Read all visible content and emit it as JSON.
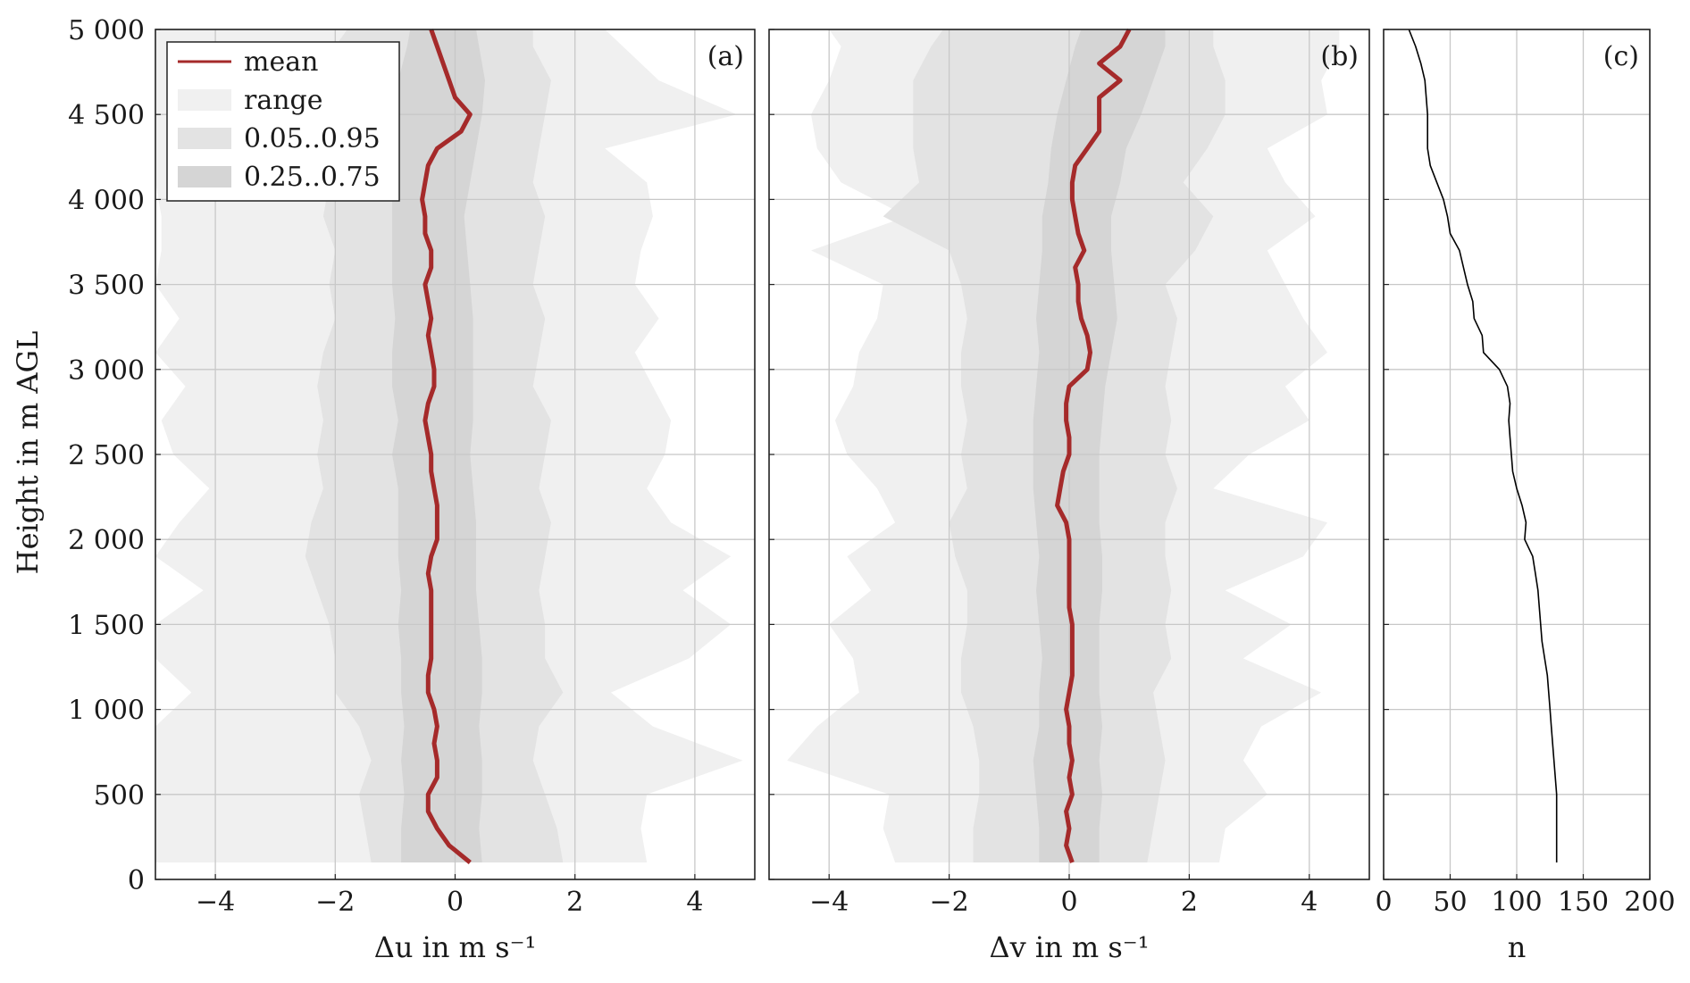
{
  "chart_data": [
    {
      "type": "area",
      "panel_label": "(a)",
      "xlabel": "Δu in m s⁻¹",
      "ylabel": "Height in m AGL",
      "xlim": [
        -5,
        5
      ],
      "ylim": [
        0,
        5000
      ],
      "xticks": [
        -4,
        -2,
        0,
        2,
        4
      ],
      "xtick_labels": [
        "−4",
        "−2",
        "0",
        "2",
        "4"
      ],
      "yticks": [
        0,
        500,
        1000,
        1500,
        2000,
        2500,
        3000,
        3500,
        4000,
        4500,
        5000
      ],
      "ytick_labels": [
        "0",
        "500",
        "1 000",
        "1 500",
        "2 000",
        "2 500",
        "3 000",
        "3 500",
        "4 000",
        "4 500",
        "5 000"
      ],
      "grid": true,
      "legend": {
        "placement": "top-left",
        "entries": [
          {
            "label": "mean",
            "style": "line",
            "color": "#a52a2a"
          },
          {
            "label": "range",
            "style": "band",
            "color": "#f0f0f0"
          },
          {
            "label": "0.05..0.95",
            "style": "band",
            "color": "#e3e3e3"
          },
          {
            "label": "0.25..0.75",
            "style": "band",
            "color": "#d5d5d5"
          }
        ]
      },
      "series": [
        {
          "name": "mean",
          "heights": [
            100,
            200,
            300,
            400,
            500,
            600,
            700,
            800,
            900,
            1000,
            1100,
            1200,
            1300,
            1400,
            1500,
            1600,
            1700,
            1800,
            1900,
            2000,
            2100,
            2200,
            2300,
            2400,
            2500,
            2600,
            2700,
            2800,
            2900,
            3000,
            3100,
            3200,
            3300,
            3400,
            3500,
            3600,
            3700,
            3800,
            3900,
            4000,
            4100,
            4200,
            4300,
            4400,
            4500,
            4600,
            4700,
            4800,
            4900,
            5000
          ],
          "values": [
            0.25,
            -0.1,
            -0.3,
            -0.45,
            -0.45,
            -0.3,
            -0.3,
            -0.35,
            -0.3,
            -0.35,
            -0.45,
            -0.45,
            -0.4,
            -0.4,
            -0.4,
            -0.4,
            -0.4,
            -0.45,
            -0.4,
            -0.3,
            -0.3,
            -0.3,
            -0.35,
            -0.4,
            -0.4,
            -0.45,
            -0.5,
            -0.45,
            -0.35,
            -0.35,
            -0.4,
            -0.45,
            -0.4,
            -0.45,
            -0.5,
            -0.4,
            -0.4,
            -0.5,
            -0.5,
            -0.55,
            -0.5,
            -0.45,
            -0.3,
            0.1,
            0.25,
            0.0,
            -0.1,
            -0.2,
            -0.3,
            -0.4
          ]
        },
        {
          "name": "0.25..0.75",
          "heights": [
            100,
            300,
            500,
            700,
            900,
            1100,
            1300,
            1500,
            1700,
            1900,
            2100,
            2300,
            2500,
            2700,
            2900,
            3100,
            3300,
            3500,
            3700,
            3900,
            4100,
            4300,
            4500,
            4700,
            4900,
            5000
          ],
          "low": [
            -0.9,
            -0.9,
            -0.85,
            -0.9,
            -0.85,
            -0.9,
            -0.9,
            -0.95,
            -0.9,
            -0.95,
            -0.95,
            -0.95,
            -1.05,
            -0.95,
            -1.05,
            -1.05,
            -1.0,
            -1.05,
            -1.05,
            -1.05,
            -1.05,
            -1.0,
            -0.95,
            -0.95,
            -0.8,
            -0.75
          ],
          "high": [
            0.45,
            0.4,
            0.45,
            0.45,
            0.4,
            0.45,
            0.45,
            0.4,
            0.35,
            0.35,
            0.35,
            0.3,
            0.25,
            0.3,
            0.3,
            0.3,
            0.3,
            0.25,
            0.2,
            0.15,
            0.25,
            0.35,
            0.45,
            0.5,
            0.4,
            0.35
          ]
        },
        {
          "name": "0.05..0.95",
          "heights": [
            100,
            300,
            500,
            700,
            900,
            1100,
            1300,
            1500,
            1700,
            1900,
            2100,
            2300,
            2500,
            2700,
            2900,
            3100,
            3300,
            3500,
            3700,
            3900,
            4100,
            4300,
            4500,
            4700,
            4900,
            5000
          ],
          "low": [
            -1.4,
            -1.5,
            -1.6,
            -1.4,
            -1.6,
            -2.0,
            -2.0,
            -2.1,
            -2.3,
            -2.5,
            -2.4,
            -2.2,
            -2.3,
            -2.2,
            -2.3,
            -2.2,
            -2.0,
            -2.1,
            -2.0,
            -2.2,
            -2.1,
            -2.0,
            -2.3,
            -2.2,
            -2.0,
            -1.8
          ],
          "high": [
            1.8,
            1.7,
            1.5,
            1.3,
            1.4,
            1.8,
            1.5,
            1.5,
            1.4,
            1.5,
            1.6,
            1.4,
            1.5,
            1.6,
            1.3,
            1.4,
            1.5,
            1.3,
            1.4,
            1.5,
            1.3,
            1.4,
            1.5,
            1.6,
            1.3,
            1.3
          ]
        },
        {
          "name": "range",
          "heights": [
            100,
            300,
            500,
            700,
            900,
            1100,
            1300,
            1500,
            1700,
            1900,
            2100,
            2300,
            2500,
            2700,
            2900,
            3100,
            3300,
            3500,
            3700,
            3900,
            4100,
            4300,
            4500,
            4700,
            4900,
            5000
          ],
          "low": [
            -5,
            -5,
            -5,
            -5,
            -5,
            -4.4,
            -5,
            -5,
            -4.2,
            -5,
            -4.6,
            -4.1,
            -4.7,
            -4.9,
            -4.5,
            -5,
            -4.6,
            -5,
            -4.9,
            -4.9,
            -5,
            -5,
            -5,
            -5,
            -5,
            -5
          ],
          "high": [
            3.2,
            3.1,
            3.2,
            4.8,
            3.3,
            2.6,
            3.9,
            4.6,
            3.8,
            4.6,
            3.6,
            3.2,
            3.5,
            3.6,
            3.3,
            3.0,
            3.4,
            3.0,
            3.1,
            3.3,
            3.2,
            2.5,
            4.7,
            3.4,
            2.8,
            2.5
          ]
        }
      ]
    },
    {
      "type": "area",
      "panel_label": "(b)",
      "xlabel": "Δv in m s⁻¹",
      "xlim": [
        -5,
        5
      ],
      "ylim": [
        0,
        5000
      ],
      "xticks": [
        -4,
        -2,
        0,
        2,
        4
      ],
      "xtick_labels": [
        "−4",
        "−2",
        "0",
        "2",
        "4"
      ],
      "grid": true,
      "series": [
        {
          "name": "mean",
          "heights": [
            100,
            200,
            300,
            400,
            500,
            600,
            700,
            800,
            900,
            1000,
            1100,
            1200,
            1300,
            1400,
            1500,
            1600,
            1700,
            1800,
            1900,
            2000,
            2100,
            2200,
            2300,
            2400,
            2500,
            2600,
            2700,
            2800,
            2900,
            3000,
            3100,
            3200,
            3300,
            3400,
            3500,
            3600,
            3700,
            3800,
            3900,
            4000,
            4100,
            4200,
            4300,
            4400,
            4500,
            4600,
            4700,
            4800,
            4900,
            5000
          ],
          "values": [
            0.05,
            -0.05,
            0.0,
            -0.05,
            0.05,
            0.0,
            0.05,
            0.0,
            0.0,
            -0.05,
            0.0,
            0.05,
            0.05,
            0.05,
            0.05,
            0.0,
            0.0,
            0.0,
            0.0,
            0.0,
            -0.05,
            -0.2,
            -0.15,
            -0.1,
            0.0,
            0.0,
            -0.05,
            -0.05,
            0.0,
            0.3,
            0.35,
            0.3,
            0.2,
            0.15,
            0.15,
            0.1,
            0.25,
            0.15,
            0.1,
            0.05,
            0.05,
            0.1,
            0.3,
            0.5,
            0.5,
            0.5,
            0.85,
            0.5,
            0.85,
            1.0
          ]
        },
        {
          "name": "0.25..0.75",
          "heights": [
            100,
            300,
            500,
            700,
            900,
            1100,
            1300,
            1500,
            1700,
            1900,
            2100,
            2300,
            2500,
            2700,
            2900,
            3100,
            3300,
            3500,
            3700,
            3900,
            4100,
            4300,
            4500,
            4700,
            4900,
            5000
          ],
          "low": [
            -0.5,
            -0.5,
            -0.55,
            -0.6,
            -0.5,
            -0.5,
            -0.45,
            -0.5,
            -0.55,
            -0.5,
            -0.55,
            -0.6,
            -0.6,
            -0.6,
            -0.55,
            -0.5,
            -0.55,
            -0.5,
            -0.45,
            -0.45,
            -0.35,
            -0.3,
            -0.2,
            -0.05,
            0.1,
            0.2
          ],
          "high": [
            0.5,
            0.5,
            0.55,
            0.5,
            0.55,
            0.5,
            0.5,
            0.5,
            0.55,
            0.55,
            0.5,
            0.5,
            0.5,
            0.55,
            0.6,
            0.7,
            0.8,
            0.75,
            0.7,
            0.7,
            0.85,
            0.95,
            1.2,
            1.4,
            1.6,
            1.6
          ]
        },
        {
          "name": "0.05..0.95",
          "heights": [
            100,
            300,
            500,
            700,
            900,
            1100,
            1300,
            1500,
            1700,
            1900,
            2100,
            2300,
            2500,
            2700,
            2900,
            3100,
            3300,
            3500,
            3700,
            3900,
            4100,
            4300,
            4500,
            4700,
            4900,
            5000
          ],
          "low": [
            -1.6,
            -1.6,
            -1.5,
            -1.5,
            -1.6,
            -1.8,
            -1.8,
            -1.7,
            -1.7,
            -1.9,
            -2.0,
            -1.7,
            -1.8,
            -1.7,
            -1.8,
            -1.8,
            -1.7,
            -1.8,
            -2.0,
            -3.1,
            -2.5,
            -2.6,
            -2.6,
            -2.6,
            -2.3,
            -2.1
          ],
          "high": [
            1.3,
            1.4,
            1.5,
            1.6,
            1.5,
            1.4,
            1.7,
            1.6,
            1.7,
            1.6,
            1.6,
            1.8,
            1.6,
            1.7,
            1.6,
            1.7,
            1.8,
            1.6,
            2.1,
            2.4,
            1.9,
            2.3,
            2.6,
            2.6,
            2.4,
            2.4
          ]
        },
        {
          "name": "range",
          "heights": [
            100,
            300,
            500,
            700,
            900,
            1100,
            1300,
            1500,
            1700,
            1900,
            2100,
            2300,
            2500,
            2700,
            2900,
            3100,
            3300,
            3500,
            3700,
            3900,
            4100,
            4300,
            4500,
            4700,
            4900,
            5000
          ],
          "low": [
            -2.9,
            -3.1,
            -3.0,
            -4.7,
            -4.2,
            -3.5,
            -3.6,
            -4.0,
            -3.3,
            -3.7,
            -2.9,
            -3.2,
            -3.7,
            -3.9,
            -3.6,
            -3.5,
            -3.2,
            -3.1,
            -4.3,
            -2.7,
            -3.8,
            -4.2,
            -4.3,
            -4.0,
            -3.8,
            -4.0
          ],
          "high": [
            2.5,
            2.6,
            3.3,
            2.9,
            3.2,
            4.2,
            2.9,
            3.7,
            2.6,
            3.9,
            4.3,
            2.4,
            3.0,
            4.0,
            3.6,
            4.3,
            3.9,
            3.6,
            3.3,
            4.1,
            3.6,
            3.3,
            4.3,
            4.2,
            4.5,
            4.5
          ]
        }
      ]
    },
    {
      "type": "line",
      "panel_label": "(c)",
      "xlabel": "n",
      "xlim": [
        0,
        200
      ],
      "ylim": [
        0,
        5000
      ],
      "xticks": [
        0,
        50,
        100,
        150,
        200
      ],
      "xtick_labels": [
        "0",
        "50",
        "100",
        "150",
        "200"
      ],
      "grid": true,
      "series": [
        {
          "name": "n",
          "color": "#000000",
          "heights": [
            100,
            200,
            300,
            400,
            500,
            600,
            700,
            800,
            900,
            1000,
            1100,
            1200,
            1300,
            1400,
            1500,
            1600,
            1700,
            1800,
            1900,
            2000,
            2100,
            2200,
            2300,
            2400,
            2500,
            2600,
            2700,
            2800,
            2900,
            3000,
            3100,
            3200,
            3300,
            3400,
            3500,
            3600,
            3700,
            3800,
            3900,
            4000,
            4100,
            4200,
            4300,
            4400,
            4500,
            4600,
            4700,
            4800,
            4900,
            5000
          ],
          "values": [
            130,
            130,
            130,
            130,
            130,
            129,
            128,
            127,
            126,
            125,
            124,
            123,
            121,
            119,
            118,
            117,
            116,
            114,
            112,
            106,
            107,
            104,
            100,
            97,
            96,
            95,
            94,
            95,
            93,
            87,
            75,
            74,
            68,
            67,
            63,
            60,
            57,
            50,
            48,
            45,
            40,
            35,
            33,
            33,
            33,
            32,
            31,
            28,
            24,
            19
          ]
        }
      ]
    }
  ]
}
